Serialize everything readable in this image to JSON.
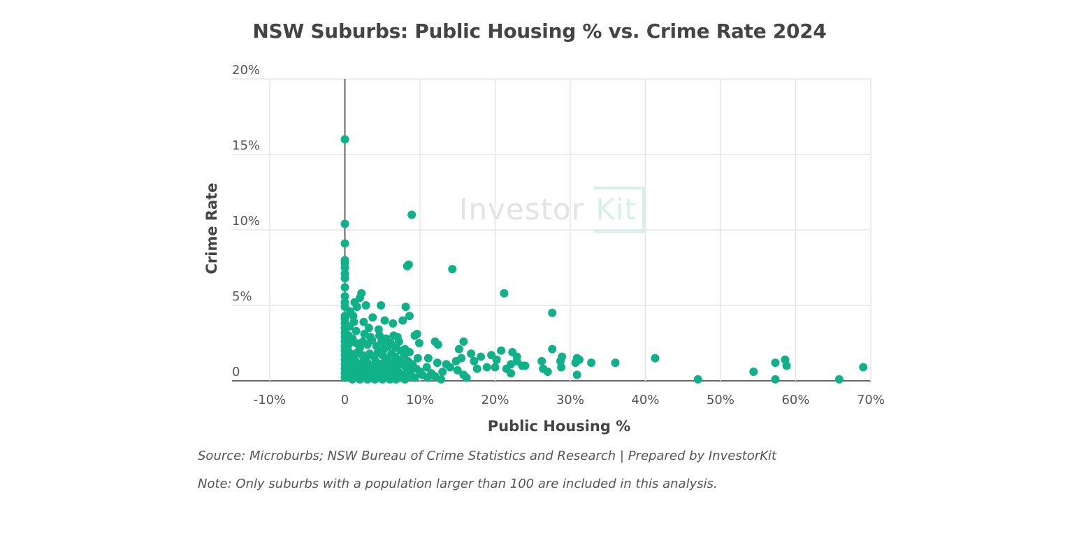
{
  "chart_data": {
    "type": "scatter",
    "title": "NSW Suburbs: Public Housing % vs. Crime Rate 2024",
    "xlabel": "Public Housing %",
    "ylabel": "Crime Rate",
    "xlim": [
      -10,
      70
    ],
    "ylim": [
      0,
      20
    ],
    "x_ticks": [
      -10,
      0,
      10,
      20,
      30,
      40,
      50,
      60,
      70
    ],
    "x_tick_labels": [
      "-10%",
      "0",
      "10%",
      "20%",
      "30%",
      "40%",
      "50%",
      "60%",
      "70%"
    ],
    "y_ticks": [
      0,
      5,
      10,
      15,
      20
    ],
    "y_tick_labels": [
      "0",
      "5%",
      "10%",
      "15%",
      "20%"
    ],
    "grid": true,
    "marker_color": "#10b088",
    "watermark": "InvestorKit",
    "points": [
      [
        0,
        16.0
      ],
      [
        0,
        10.4
      ],
      [
        0,
        9.1
      ],
      [
        0,
        8.0
      ],
      [
        0,
        7.8
      ],
      [
        0,
        7.5
      ],
      [
        0,
        7.1
      ],
      [
        0,
        6.8
      ],
      [
        0,
        6.2
      ],
      [
        0,
        5.6
      ],
      [
        0,
        5.2
      ],
      [
        0,
        4.9
      ],
      [
        0,
        4.3
      ],
      [
        0,
        4.1
      ],
      [
        0,
        3.8
      ],
      [
        0,
        3.5
      ],
      [
        0,
        3.2
      ],
      [
        0,
        2.9
      ],
      [
        0,
        2.6
      ],
      [
        0,
        2.3
      ],
      [
        0,
        2.0
      ],
      [
        0,
        1.7
      ],
      [
        0,
        1.4
      ],
      [
        0,
        1.1
      ],
      [
        0,
        0.8
      ],
      [
        0,
        0.5
      ],
      [
        0,
        0.2
      ],
      [
        8.9,
        11.0
      ],
      [
        8.3,
        7.6
      ],
      [
        8.5,
        7.7
      ],
      [
        14.3,
        7.4
      ],
      [
        21.2,
        5.8
      ],
      [
        27.6,
        4.5
      ],
      [
        2.0,
        5.5
      ],
      [
        1.3,
        5.2
      ],
      [
        4.8,
        5.0
      ],
      [
        2.8,
        5.0
      ],
      [
        8.1,
        4.9
      ],
      [
        1.6,
        4.9
      ],
      [
        2.2,
        5.8
      ],
      [
        8.6,
        4.3
      ],
      [
        7.7,
        4.0
      ],
      [
        3.7,
        4.2
      ],
      [
        5.3,
        4.0
      ],
      [
        2.5,
        3.9
      ],
      [
        1.2,
        3.9
      ],
      [
        6.4,
        3.8
      ],
      [
        0.6,
        3.6
      ],
      [
        3.2,
        3.5
      ],
      [
        4.5,
        3.4
      ],
      [
        9.6,
        3.1
      ],
      [
        9.3,
        3.0
      ],
      [
        9.9,
        2.5
      ],
      [
        15.8,
        2.6
      ],
      [
        12.0,
        2.6
      ],
      [
        12.4,
        2.4
      ],
      [
        15.2,
        2.1
      ],
      [
        27.6,
        2.1
      ],
      [
        20.8,
        2.0
      ],
      [
        22.3,
        1.9
      ],
      [
        41.3,
        1.5
      ],
      [
        58.6,
        1.4
      ],
      [
        57.3,
        1.2
      ],
      [
        58.8,
        1.0
      ],
      [
        69.0,
        0.9
      ],
      [
        54.4,
        0.6
      ],
      [
        47.0,
        0.1
      ],
      [
        57.3,
        0.1
      ],
      [
        65.8,
        0.1
      ],
      [
        36.0,
        1.2
      ],
      [
        32.8,
        1.2
      ],
      [
        30.9,
        1.5
      ],
      [
        31.2,
        1.4
      ],
      [
        30.7,
        1.2
      ],
      [
        30.9,
        0.4
      ],
      [
        28.9,
        1.6
      ],
      [
        28.7,
        1.3
      ],
      [
        28.8,
        0.9
      ],
      [
        26.2,
        1.3
      ],
      [
        26.4,
        0.8
      ],
      [
        27.0,
        0.6
      ],
      [
        23.6,
        1.0
      ],
      [
        22.9,
        1.6
      ],
      [
        22.9,
        1.3
      ],
      [
        22.1,
        1.1
      ],
      [
        22.1,
        0.5
      ],
      [
        20.2,
        1.4
      ],
      [
        19.5,
        1.7
      ],
      [
        20.0,
        0.9
      ],
      [
        18.1,
        1.6
      ],
      [
        16.8,
        1.8
      ],
      [
        17.2,
        1.3
      ],
      [
        17.6,
        0.8
      ],
      [
        15.5,
        1.5
      ],
      [
        14.8,
        1.3
      ],
      [
        13.5,
        1.1
      ],
      [
        15.0,
        0.7
      ],
      [
        15.8,
        0.4
      ],
      [
        12.3,
        1.2
      ],
      [
        11.1,
        1.5
      ],
      [
        9.7,
        1.5
      ],
      [
        10.9,
        0.9
      ],
      [
        12.0,
        0.3
      ],
      [
        9.3,
        0.2
      ],
      [
        13.0,
        0.6
      ],
      [
        14.0,
        0.9
      ],
      [
        11.5,
        0.5
      ],
      [
        10.3,
        0.4
      ],
      [
        12.8,
        0.1
      ],
      [
        16.2,
        0.2
      ],
      [
        18.9,
        0.9
      ],
      [
        21.5,
        0.8
      ],
      [
        24.0,
        1.0
      ],
      [
        0.5,
        3.0
      ],
      [
        1.0,
        2.8
      ],
      [
        1.5,
        2.5
      ],
      [
        2.4,
        2.6
      ],
      [
        3.0,
        2.4
      ],
      [
        3.6,
        2.7
      ],
      [
        4.2,
        2.3
      ],
      [
        4.9,
        2.6
      ],
      [
        5.5,
        2.8
      ],
      [
        6.1,
        2.5
      ],
      [
        6.8,
        2.2
      ],
      [
        7.4,
        2.0
      ],
      [
        8.0,
        2.1
      ],
      [
        8.6,
        1.9
      ],
      [
        7.2,
        2.6
      ],
      [
        5.8,
        2.3
      ],
      [
        2.0,
        2.2
      ],
      [
        0.4,
        2.0
      ],
      [
        0.8,
        1.8
      ],
      [
        1.2,
        1.6
      ],
      [
        1.7,
        1.9
      ],
      [
        2.3,
        1.7
      ],
      [
        2.8,
        1.5
      ],
      [
        3.3,
        1.8
      ],
      [
        3.9,
        1.6
      ],
      [
        4.4,
        1.9
      ],
      [
        5.0,
        1.7
      ],
      [
        5.6,
        1.5
      ],
      [
        6.2,
        1.8
      ],
      [
        6.7,
        1.6
      ],
      [
        7.3,
        1.4
      ],
      [
        7.9,
        1.7
      ],
      [
        8.4,
        1.3
      ],
      [
        9.0,
        1.1
      ],
      [
        0.3,
        1.4
      ],
      [
        0.9,
        1.2
      ],
      [
        1.4,
        1.3
      ],
      [
        1.9,
        1.1
      ],
      [
        2.5,
        1.4
      ],
      [
        3.0,
        1.2
      ],
      [
        3.6,
        1.0
      ],
      [
        4.1,
        1.3
      ],
      [
        4.7,
        1.1
      ],
      [
        5.2,
        1.2
      ],
      [
        5.8,
        1.0
      ],
      [
        6.4,
        1.2
      ],
      [
        6.9,
        0.9
      ],
      [
        7.5,
        1.1
      ],
      [
        8.1,
        0.9
      ],
      [
        8.7,
        0.7
      ],
      [
        9.5,
        0.8
      ],
      [
        0.2,
        0.9
      ],
      [
        0.7,
        0.7
      ],
      [
        1.1,
        0.8
      ],
      [
        1.6,
        0.6
      ],
      [
        2.1,
        0.9
      ],
      [
        2.7,
        0.7
      ],
      [
        3.2,
        0.6
      ],
      [
        3.8,
        0.8
      ],
      [
        4.3,
        0.6
      ],
      [
        4.9,
        0.7
      ],
      [
        5.4,
        0.5
      ],
      [
        6.0,
        0.7
      ],
      [
        6.6,
        0.5
      ],
      [
        7.1,
        0.6
      ],
      [
        7.7,
        0.4
      ],
      [
        8.3,
        0.5
      ],
      [
        10.0,
        0.6
      ],
      [
        0.3,
        0.4
      ],
      [
        0.8,
        0.3
      ],
      [
        1.3,
        0.2
      ],
      [
        1.8,
        0.4
      ],
      [
        2.4,
        0.2
      ],
      [
        2.9,
        0.3
      ],
      [
        3.5,
        0.2
      ],
      [
        4.0,
        0.4
      ],
      [
        4.6,
        0.2
      ],
      [
        5.1,
        0.3
      ],
      [
        5.7,
        0.2
      ],
      [
        6.3,
        0.3
      ],
      [
        6.8,
        0.1
      ],
      [
        7.4,
        0.2
      ],
      [
        8.0,
        0.1
      ],
      [
        8.9,
        0.3
      ],
      [
        11.0,
        0.2
      ],
      [
        1.0,
        0.1
      ],
      [
        2.0,
        0.1
      ],
      [
        3.0,
        0.1
      ],
      [
        4.0,
        0.1
      ],
      [
        5.0,
        0.1
      ],
      [
        6.0,
        0.1
      ],
      [
        0.5,
        2.4
      ],
      [
        1.5,
        3.3
      ],
      [
        2.6,
        3.1
      ],
      [
        3.4,
        2.9
      ],
      [
        4.6,
        3.0
      ],
      [
        5.2,
        2.1
      ],
      [
        6.5,
        3.0
      ],
      [
        7.0,
        2.9
      ],
      [
        1.1,
        4.3
      ],
      [
        0.7,
        4.6
      ]
    ],
    "source": "Source: Microburbs; NSW Bureau of Crime Statistics and Research | Prepared by InvestorKit",
    "note": "Note: Only suburbs with a population larger than 100 are included in this analysis."
  }
}
